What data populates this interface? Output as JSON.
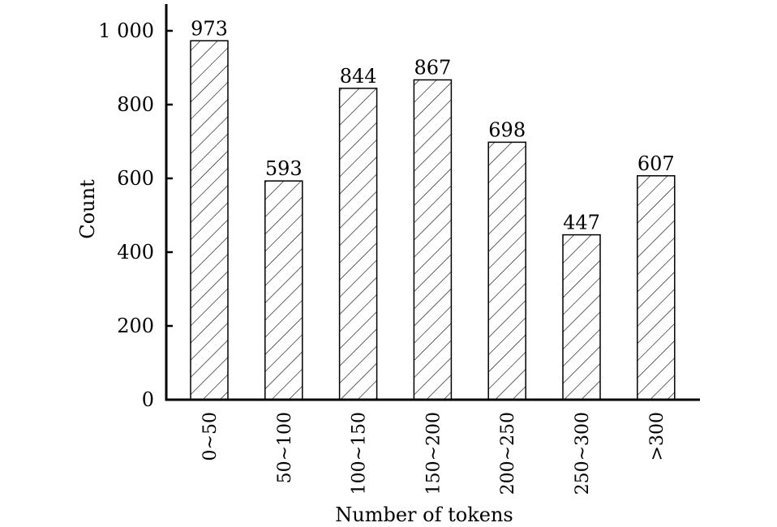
{
  "chart_data": {
    "type": "bar",
    "categories": [
      "0~50",
      "50~100",
      "100~150",
      "150~200",
      "200~250",
      "250~300",
      ">300"
    ],
    "values": [
      973,
      593,
      844,
      867,
      698,
      447,
      607
    ],
    "data_labels": [
      "973",
      "593",
      "844",
      "867",
      "698",
      "447",
      "607"
    ],
    "title": "",
    "xlabel": "Number of tokens",
    "ylabel": "Count",
    "ylim": [
      0,
      1070
    ],
    "yticks": [
      0,
      200,
      400,
      600,
      800,
      1000
    ],
    "ytick_labels": [
      "0",
      "200",
      "400",
      "600",
      "800",
      "1 000"
    ],
    "grid": false,
    "bar_fill": "diagonal hatch",
    "bar_color": "#000000"
  }
}
